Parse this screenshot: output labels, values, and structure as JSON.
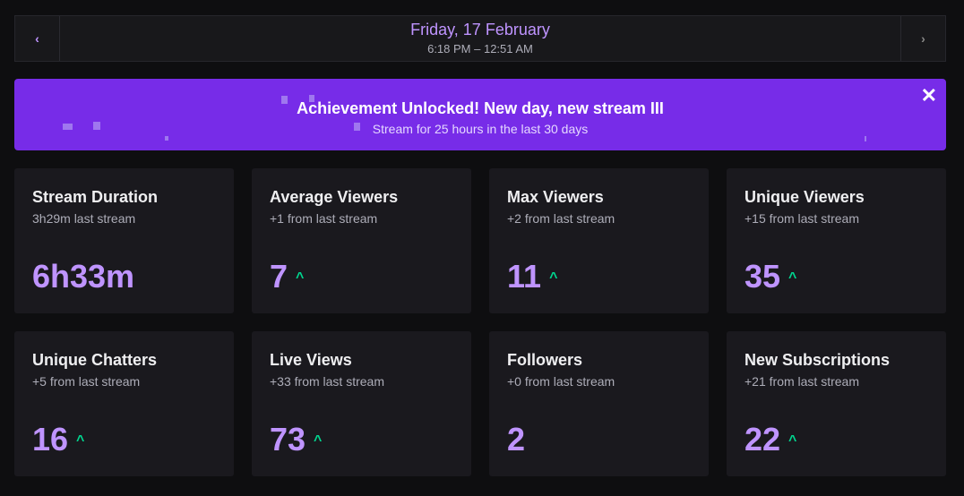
{
  "date": {
    "title": "Friday, 17 February",
    "time": "6:18 PM – 12:51 AM"
  },
  "banner": {
    "title": "Achievement Unlocked! New day, new stream III",
    "subtitle": "Stream for 25 hours in the last 30 days"
  },
  "colors": {
    "accent": "#bf94ff",
    "banner": "#772ce8",
    "up": "#00d68f"
  },
  "cards": [
    {
      "title": "Stream Duration",
      "sub": "3h29m last stream",
      "value": "6h33m",
      "up": false
    },
    {
      "title": "Average Viewers",
      "sub": "+1 from last stream",
      "value": "7",
      "up": true
    },
    {
      "title": "Max Viewers",
      "sub": "+2 from last stream",
      "value": "11",
      "up": true
    },
    {
      "title": "Unique Viewers",
      "sub": "+15 from last stream",
      "value": "35",
      "up": true
    },
    {
      "title": "Unique Chatters",
      "sub": "+5 from last stream",
      "value": "16",
      "up": true
    },
    {
      "title": "Live Views",
      "sub": "+33 from last stream",
      "value": "73",
      "up": true
    },
    {
      "title": "Followers",
      "sub": "+0 from last stream",
      "value": "2",
      "up": false
    },
    {
      "title": "New Subscriptions",
      "sub": "+21 from last stream",
      "value": "22",
      "up": true
    }
  ]
}
